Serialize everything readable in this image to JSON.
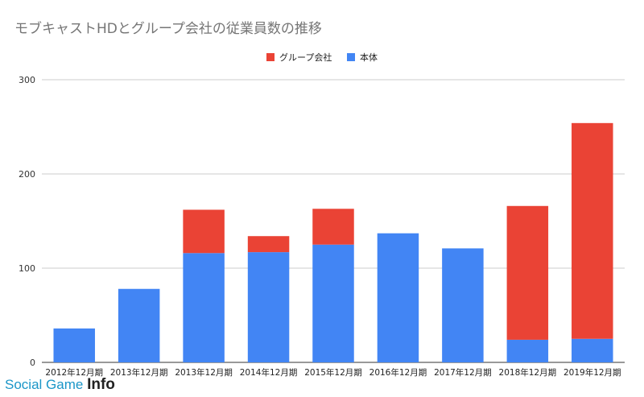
{
  "colors": {
    "group": "#ea4335",
    "main": "#4285f4",
    "grid": "#cccccc",
    "axis": "#333333"
  },
  "chart_data": {
    "type": "bar",
    "stacked": true,
    "title": "モブキャストHDとグループ会社の従業員数の推移",
    "xlabel": "",
    "ylabel": "",
    "ylim": [
      0,
      300
    ],
    "yticks": [
      0,
      100,
      200,
      300
    ],
    "grid": true,
    "legend_position": "top-center",
    "categories": [
      "2012年12月期",
      "2013年12月期",
      "2013年12月期",
      "2014年12月期",
      "2015年12月期",
      "2016年12月期",
      "2017年12月期",
      "2018年12月期",
      "2019年12月期"
    ],
    "series": [
      {
        "name": "本体",
        "color": "#4285f4",
        "values": [
          36,
          78,
          116,
          117,
          125,
          137,
          121,
          24,
          25
        ]
      },
      {
        "name": "グループ会社",
        "color": "#ea4335",
        "values": [
          0,
          0,
          46,
          17,
          38,
          0,
          0,
          142,
          229
        ]
      }
    ],
    "legend_order": [
      "グループ会社",
      "本体"
    ]
  },
  "watermark": {
    "part1": "Social ",
    "part2": "Game ",
    "part3": "Info"
  }
}
